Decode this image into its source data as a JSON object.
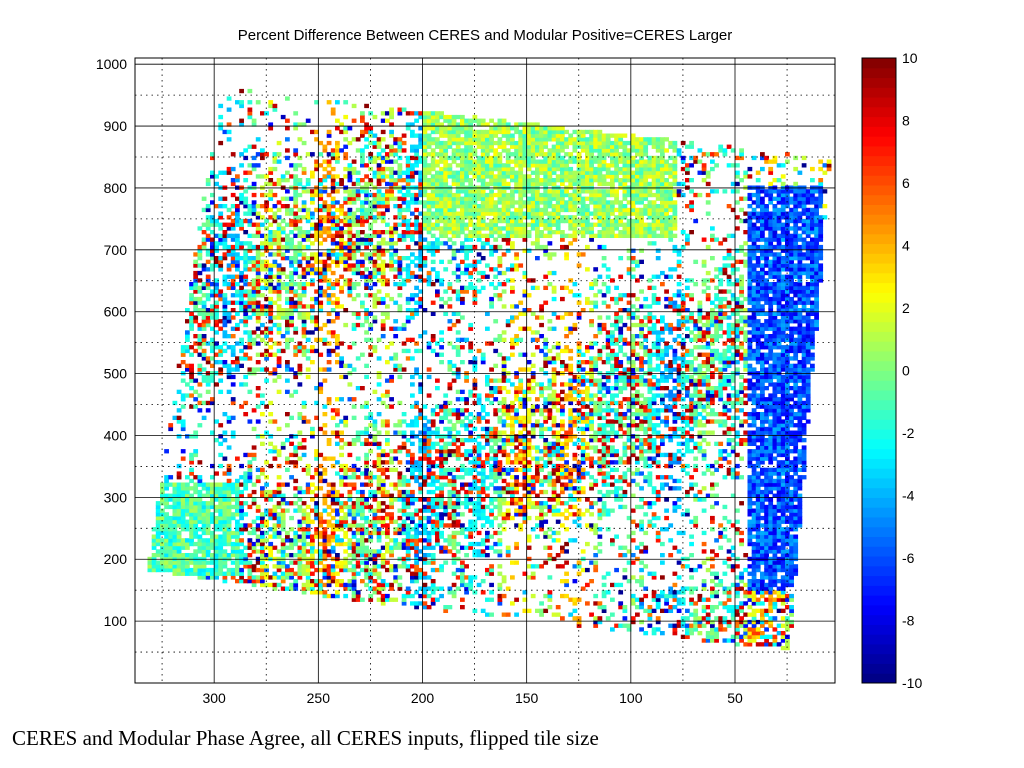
{
  "slide": {
    "caption": "CERES and Modular Phase Agree, all CERES inputs, flipped tile size"
  },
  "chart_data": {
    "type": "heatmap",
    "title": "Percent Difference Between CERES and Modular Positive=CERES Larger",
    "xlabel": "",
    "ylabel": "",
    "xlim": [
      338,
      2
    ],
    "ylim": [
      0,
      1010
    ],
    "x_reversed": true,
    "x_ticks": [
      300,
      250,
      200,
      150,
      100,
      50
    ],
    "y_ticks": [
      100,
      200,
      300,
      400,
      500,
      600,
      700,
      800,
      900,
      1000
    ],
    "x_minor_ticks": [
      325,
      275,
      225,
      175,
      125,
      75,
      25
    ],
    "y_minor_ticks": [
      50,
      150,
      250,
      350,
      450,
      550,
      650,
      750,
      850,
      950
    ],
    "grid": true,
    "colormap": "jet",
    "colorbar": {
      "min": -10,
      "max": 10,
      "ticks": [
        10,
        8,
        6,
        4,
        2,
        0,
        -2,
        -4,
        -6,
        -8,
        -10
      ]
    },
    "data_footprint_corners": [
      [
        333,
        180
      ],
      [
        298,
        960
      ],
      [
        5,
        845
      ],
      [
        25,
        50
      ],
      [
        245,
        135
      ]
    ],
    "dominant_value_regions": [
      {
        "description": "upper-middle plateau",
        "x_range": [
          200,
          80
        ],
        "y_range": [
          720,
          930
        ],
        "value": 0.5
      },
      {
        "description": "right edge strip",
        "x_range": [
          45,
          10
        ],
        "y_range": [
          150,
          800
        ],
        "value": -6
      },
      {
        "description": "left lower band",
        "x_range": [
          335,
          290
        ],
        "y_range": [
          170,
          320
        ],
        "value": -1
      }
    ]
  }
}
